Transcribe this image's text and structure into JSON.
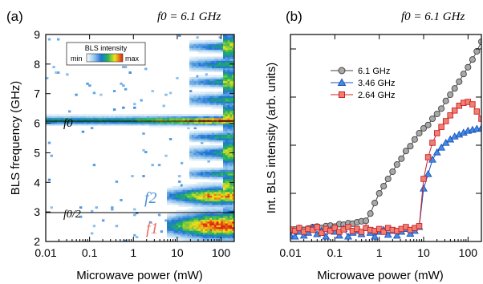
{
  "chart_data": [
    {
      "type": "heatmap",
      "panel_label": "(a)",
      "annotation_top": "f0 = 6.1 GHz",
      "xlabel": "Microwave power (mW)",
      "ylabel": "BLS frequency (GHz)",
      "x_scale": "log",
      "xlim": [
        0.01,
        200
      ],
      "ylim": [
        2,
        9
      ],
      "x_ticks": [
        "0.01",
        "0.1",
        "1",
        "10",
        "100"
      ],
      "y_ticks": [
        "2",
        "3",
        "4",
        "5",
        "6",
        "7",
        "8",
        "9"
      ],
      "colorbar": {
        "title": "BLS intensity",
        "min_label": "min",
        "max_label": "max"
      },
      "reference_lines": [
        {
          "label": "f0",
          "y": 6.1
        },
        {
          "label": "f0/2",
          "y": 3.05
        }
      ],
      "mode_labels": [
        {
          "label": "f2",
          "color": "#4a90d9",
          "freq": 3.5
        },
        {
          "label": "f1",
          "color": "#e4706a",
          "freq": 2.5
        }
      ]
    },
    {
      "type": "line",
      "panel_label": "(b)",
      "annotation_top": "f0 = 6.1 GHz",
      "xlabel": "Microwave power (mW)",
      "ylabel": "Int. BLS intensity (arb. units)",
      "x_scale": "log",
      "y_scale": "log",
      "xlim": [
        0.01,
        200
      ],
      "ylim_decades": [
        0,
        4.3
      ],
      "x_ticks": [
        "0.01",
        "0.1",
        "1",
        "10",
        "100"
      ],
      "legend_position": "upper-left",
      "series": [
        {
          "name": "6.1 GHz",
          "marker": "circle",
          "color": "#444444",
          "fill": "#a8a8a8",
          "x": [
            0.01,
            0.0126,
            0.0158,
            0.02,
            0.0251,
            0.0316,
            0.0398,
            0.0501,
            0.0631,
            0.0794,
            0.1,
            0.126,
            0.158,
            0.2,
            0.251,
            0.316,
            0.398,
            0.501,
            0.631,
            0.794,
            1,
            1.26,
            1.58,
            2,
            2.51,
            3.16,
            3.98,
            5.01,
            6.31,
            7.94,
            10,
            12.6,
            15.8,
            20,
            25.1,
            31.6,
            39.8,
            50.1,
            63.1,
            79.4,
            100,
            126,
            158,
            200
          ],
          "y": [
            0.23,
            0.25,
            0.28,
            0.24,
            0.27,
            0.3,
            0.31,
            0.28,
            0.32,
            0.33,
            0.31,
            0.36,
            0.35,
            0.38,
            0.37,
            0.4,
            0.42,
            0.43,
            0.58,
            0.8,
            1.0,
            1.15,
            1.3,
            1.45,
            1.6,
            1.72,
            1.88,
            1.98,
            2.12,
            2.25,
            2.35,
            2.42,
            2.55,
            2.65,
            2.76,
            2.92,
            3.05,
            3.18,
            3.32,
            3.48,
            3.62,
            3.78,
            3.95,
            4.15
          ]
        },
        {
          "name": "3.46 GHz",
          "marker": "triangle",
          "color": "#1f4fbf",
          "fill": "#3f8ee0",
          "x": [
            0.01,
            0.0126,
            0.0158,
            0.02,
            0.0251,
            0.0316,
            0.0398,
            0.0501,
            0.0631,
            0.0794,
            0.1,
            0.126,
            0.158,
            0.2,
            0.251,
            0.316,
            0.398,
            0.501,
            0.631,
            0.794,
            1,
            1.26,
            1.58,
            2,
            2.51,
            3.16,
            3.98,
            5.01,
            6.31,
            7.94,
            10,
            12.6,
            15.8,
            20,
            25.1,
            31.6,
            39.8,
            50.1,
            63.1,
            79.4,
            100,
            126,
            158,
            200
          ],
          "y": [
            0.12,
            0.1,
            0.2,
            0.12,
            0.18,
            0.28,
            0.15,
            0.22,
            0.1,
            0.24,
            0.2,
            0.12,
            0.26,
            0.1,
            0.18,
            0.22,
            0.15,
            0.28,
            0.18,
            0.1,
            0.2,
            0.24,
            0.14,
            0.22,
            0.12,
            0.2,
            0.26,
            0.16,
            0.22,
            0.3,
            1.1,
            1.4,
            1.7,
            1.85,
            1.95,
            2.05,
            2.12,
            2.18,
            2.22,
            2.26,
            2.3,
            2.32,
            2.34,
            2.35
          ]
        },
        {
          "name": "2.64 GHz",
          "marker": "square",
          "color": "#c8202a",
          "fill": "#f08070",
          "x": [
            0.01,
            0.0126,
            0.0158,
            0.02,
            0.0251,
            0.0316,
            0.0398,
            0.0501,
            0.0631,
            0.0794,
            0.1,
            0.126,
            0.158,
            0.2,
            0.251,
            0.316,
            0.398,
            0.501,
            0.631,
            0.794,
            1,
            1.26,
            1.58,
            2,
            2.51,
            3.16,
            3.98,
            5.01,
            6.31,
            7.94,
            10,
            12.6,
            15.8,
            20,
            25.1,
            31.6,
            39.8,
            50.1,
            63.1,
            79.4,
            100,
            126,
            158,
            200
          ],
          "y": [
            0.25,
            0.22,
            0.28,
            0.2,
            0.26,
            0.24,
            0.3,
            0.18,
            0.26,
            0.22,
            0.28,
            0.2,
            0.25,
            0.3,
            0.22,
            0.26,
            0.2,
            0.28,
            0.24,
            0.22,
            0.26,
            0.2,
            0.28,
            0.24,
            0.22,
            0.26,
            0.3,
            0.24,
            0.28,
            0.32,
            1.3,
            1.75,
            2.05,
            2.25,
            2.38,
            2.5,
            2.62,
            2.72,
            2.82,
            2.88,
            2.9,
            2.85,
            2.7,
            2.55
          ]
        }
      ]
    }
  ]
}
